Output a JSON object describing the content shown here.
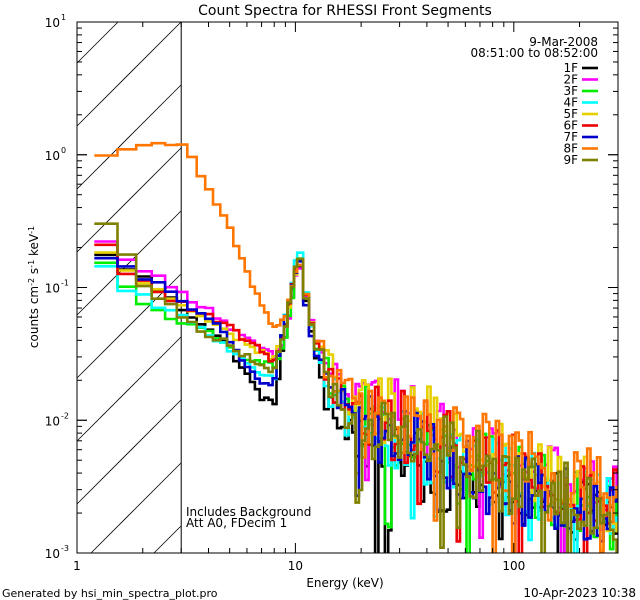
{
  "chart_data": {
    "type": "line",
    "title": "Count Spectra for RHESSI Front Segments",
    "xlabel": "Energy (keV)",
    "ylabel_parts": [
      "counts cm",
      "-2",
      " s",
      "-1",
      " keV",
      "-1"
    ],
    "x_scale": "log",
    "y_scale": "log",
    "xlim": [
      1,
      300
    ],
    "ylim": [
      0.001,
      10
    ],
    "x_ticks": [
      {
        "value": 1,
        "label": "1"
      },
      {
        "value": 10,
        "label": "10"
      },
      {
        "value": 100,
        "label": "100"
      }
    ],
    "y_ticks": [
      {
        "value": 0.001,
        "label": "10",
        "exp": "-3"
      },
      {
        "value": 0.01,
        "label": "10",
        "exp": "-2"
      },
      {
        "value": 0.1,
        "label": "10",
        "exp": "-1"
      },
      {
        "value": 1,
        "label": "10",
        "exp": "0"
      },
      {
        "value": 10,
        "label": "10",
        "exp": "1"
      }
    ],
    "date": "9-Mar-2008",
    "time_range": "08:51:00 to 08:52:00",
    "annotations": [
      "Includes Background",
      "Att A0, FDecim 1"
    ],
    "hatched_region_keV": [
      1,
      3
    ],
    "series": [
      {
        "name": "1F",
        "color": "#000000",
        "anchors": [
          [
            1.2,
            0.19
          ],
          [
            1.5,
            0.16
          ],
          [
            2,
            0.12
          ],
          [
            2.5,
            0.09
          ],
          [
            3,
            0.07
          ],
          [
            4,
            0.05
          ],
          [
            5,
            0.035
          ],
          [
            6,
            0.022
          ],
          [
            7,
            0.015
          ],
          [
            8,
            0.013
          ],
          [
            9,
            0.05
          ],
          [
            10,
            0.13
          ],
          [
            10.5,
            0.15
          ],
          [
            11,
            0.09
          ],
          [
            12,
            0.04
          ],
          [
            14,
            0.015
          ],
          [
            17,
            0.008
          ],
          [
            20,
            0.007
          ],
          [
            25,
            0.006
          ],
          [
            30,
            0.005
          ],
          [
            40,
            0.004
          ],
          [
            60,
            0.0035
          ],
          [
            80,
            0.003
          ],
          [
            100,
            0.0028
          ],
          [
            150,
            0.0023
          ],
          [
            200,
            0.0022
          ],
          [
            280,
            0.002
          ]
        ]
      },
      {
        "name": "2F",
        "color": "#ff00ff",
        "anchors": [
          [
            1.2,
            0.24
          ],
          [
            1.5,
            0.2
          ],
          [
            2,
            0.14
          ],
          [
            2.5,
            0.11
          ],
          [
            3,
            0.09
          ],
          [
            4,
            0.07
          ],
          [
            5,
            0.05
          ],
          [
            6,
            0.04
          ],
          [
            7,
            0.035
          ],
          [
            8,
            0.03
          ],
          [
            9,
            0.04
          ],
          [
            10,
            0.12
          ],
          [
            10.5,
            0.14
          ],
          [
            11,
            0.1
          ],
          [
            12,
            0.05
          ],
          [
            14,
            0.025
          ],
          [
            17,
            0.015
          ],
          [
            20,
            0.013
          ],
          [
            25,
            0.012
          ],
          [
            30,
            0.011
          ],
          [
            40,
            0.009
          ],
          [
            60,
            0.006
          ],
          [
            80,
            0.005
          ],
          [
            100,
            0.004
          ],
          [
            150,
            0.0035
          ],
          [
            200,
            0.003
          ],
          [
            280,
            0.0025
          ]
        ]
      },
      {
        "name": "3F",
        "color": "#00ee00",
        "anchors": [
          [
            1.2,
            0.2
          ],
          [
            1.5,
            0.12
          ],
          [
            2,
            0.075
          ],
          [
            2.5,
            0.065
          ],
          [
            3,
            0.055
          ],
          [
            4,
            0.045
          ],
          [
            5,
            0.035
          ],
          [
            6,
            0.03
          ],
          [
            7,
            0.028
          ],
          [
            8,
            0.025
          ],
          [
            9,
            0.04
          ],
          [
            10,
            0.12
          ],
          [
            10.5,
            0.16
          ],
          [
            11,
            0.1
          ],
          [
            12,
            0.045
          ],
          [
            14,
            0.02
          ],
          [
            17,
            0.012
          ],
          [
            20,
            0.01
          ],
          [
            25,
            0.009
          ],
          [
            30,
            0.008
          ],
          [
            40,
            0.006
          ],
          [
            60,
            0.005
          ],
          [
            80,
            0.004
          ],
          [
            100,
            0.0035
          ],
          [
            150,
            0.003
          ],
          [
            200,
            0.0025
          ],
          [
            280,
            0.002
          ]
        ]
      },
      {
        "name": "4F",
        "color": "#00ffff",
        "anchors": [
          [
            1.2,
            0.22
          ],
          [
            1.5,
            0.1
          ],
          [
            2,
            0.085
          ],
          [
            2.5,
            0.07
          ],
          [
            3,
            0.06
          ],
          [
            4,
            0.045
          ],
          [
            5,
            0.035
          ],
          [
            6,
            0.028
          ],
          [
            7,
            0.022
          ],
          [
            8,
            0.02
          ],
          [
            9,
            0.06
          ],
          [
            10,
            0.15
          ],
          [
            10.5,
            0.19
          ],
          [
            11,
            0.11
          ],
          [
            12,
            0.045
          ],
          [
            14,
            0.018
          ],
          [
            17,
            0.011
          ],
          [
            20,
            0.009
          ],
          [
            25,
            0.008
          ],
          [
            30,
            0.007
          ],
          [
            40,
            0.006
          ],
          [
            60,
            0.005
          ],
          [
            80,
            0.004
          ],
          [
            100,
            0.0035
          ],
          [
            150,
            0.003
          ],
          [
            200,
            0.0025
          ],
          [
            280,
            0.002
          ]
        ]
      },
      {
        "name": "5F",
        "color": "#e6d000",
        "anchors": [
          [
            1.2,
            0.2
          ],
          [
            1.5,
            0.16
          ],
          [
            2,
            0.11
          ],
          [
            2.5,
            0.09
          ],
          [
            3,
            0.075
          ],
          [
            4,
            0.055
          ],
          [
            5,
            0.045
          ],
          [
            6,
            0.038
          ],
          [
            7,
            0.032
          ],
          [
            8,
            0.03
          ],
          [
            9,
            0.05
          ],
          [
            10,
            0.13
          ],
          [
            10.5,
            0.16
          ],
          [
            11,
            0.1
          ],
          [
            12,
            0.05
          ],
          [
            14,
            0.025
          ],
          [
            17,
            0.016
          ],
          [
            20,
            0.013
          ],
          [
            25,
            0.012
          ],
          [
            30,
            0.011
          ],
          [
            40,
            0.01
          ],
          [
            60,
            0.007
          ],
          [
            80,
            0.0055
          ],
          [
            100,
            0.0045
          ],
          [
            150,
            0.0035
          ],
          [
            200,
            0.003
          ],
          [
            280,
            0.0025
          ]
        ]
      },
      {
        "name": "6F",
        "color": "#ee0000",
        "anchors": [
          [
            1.2,
            0.3
          ],
          [
            1.5,
            0.15
          ],
          [
            2,
            0.11
          ],
          [
            2.5,
            0.09
          ],
          [
            3,
            0.075
          ],
          [
            4,
            0.06
          ],
          [
            5,
            0.05
          ],
          [
            6,
            0.04
          ],
          [
            7,
            0.033
          ],
          [
            8,
            0.028
          ],
          [
            9,
            0.05
          ],
          [
            10,
            0.14
          ],
          [
            10.5,
            0.17
          ],
          [
            11,
            0.1
          ],
          [
            12,
            0.05
          ],
          [
            14,
            0.022
          ],
          [
            17,
            0.014
          ],
          [
            20,
            0.012
          ],
          [
            25,
            0.01
          ],
          [
            30,
            0.009
          ],
          [
            40,
            0.008
          ],
          [
            60,
            0.006
          ],
          [
            80,
            0.005
          ],
          [
            100,
            0.0045
          ],
          [
            150,
            0.0035
          ],
          [
            200,
            0.003
          ],
          [
            280,
            0.0025
          ]
        ]
      },
      {
        "name": "7F",
        "color": "#0000cc",
        "anchors": [
          [
            1.2,
            0.17
          ],
          [
            1.5,
            0.15
          ],
          [
            2,
            0.12
          ],
          [
            2.5,
            0.1
          ],
          [
            3,
            0.08
          ],
          [
            4,
            0.06
          ],
          [
            5,
            0.04
          ],
          [
            6,
            0.025
          ],
          [
            7,
            0.018
          ],
          [
            8,
            0.02
          ],
          [
            9,
            0.06
          ],
          [
            10,
            0.13
          ],
          [
            10.5,
            0.16
          ],
          [
            11,
            0.09
          ],
          [
            12,
            0.04
          ],
          [
            14,
            0.018
          ],
          [
            17,
            0.012
          ],
          [
            20,
            0.01
          ],
          [
            25,
            0.008
          ],
          [
            30,
            0.007
          ],
          [
            40,
            0.006
          ],
          [
            60,
            0.0045
          ],
          [
            80,
            0.0035
          ],
          [
            100,
            0.003
          ],
          [
            150,
            0.0025
          ],
          [
            200,
            0.0022
          ],
          [
            280,
            0.002
          ]
        ]
      },
      {
        "name": "8F",
        "color": "#ff7700",
        "anchors": [
          [
            1.2,
            0.85
          ],
          [
            1.5,
            1.0
          ],
          [
            2,
            1.15
          ],
          [
            2.5,
            1.25
          ],
          [
            3,
            1.15
          ],
          [
            3.5,
            0.85
          ],
          [
            4,
            0.55
          ],
          [
            5,
            0.28
          ],
          [
            6,
            0.13
          ],
          [
            7,
            0.075
          ],
          [
            8,
            0.05
          ],
          [
            9,
            0.06
          ],
          [
            10,
            0.13
          ],
          [
            10.5,
            0.16
          ],
          [
            11,
            0.1
          ],
          [
            12,
            0.05
          ],
          [
            14,
            0.025
          ],
          [
            17,
            0.016
          ],
          [
            20,
            0.013
          ],
          [
            25,
            0.012
          ],
          [
            30,
            0.01
          ],
          [
            40,
            0.009
          ],
          [
            60,
            0.007
          ],
          [
            80,
            0.006
          ],
          [
            100,
            0.005
          ],
          [
            150,
            0.004
          ],
          [
            200,
            0.0035
          ],
          [
            280,
            0.003
          ]
        ]
      },
      {
        "name": "9F",
        "color": "#808000",
        "anchors": [
          [
            1.2,
            0.45
          ],
          [
            1.5,
            0.25
          ],
          [
            2,
            0.11
          ],
          [
            2.5,
            0.08
          ],
          [
            3,
            0.06
          ],
          [
            4,
            0.045
          ],
          [
            5,
            0.038
          ],
          [
            6,
            0.03
          ],
          [
            7,
            0.025
          ],
          [
            8,
            0.024
          ],
          [
            9,
            0.05
          ],
          [
            10,
            0.14
          ],
          [
            10.5,
            0.17
          ],
          [
            11,
            0.1
          ],
          [
            12,
            0.045
          ],
          [
            14,
            0.02
          ],
          [
            17,
            0.012
          ],
          [
            20,
            0.01
          ],
          [
            25,
            0.009
          ],
          [
            30,
            0.008
          ],
          [
            40,
            0.007
          ],
          [
            60,
            0.005
          ],
          [
            80,
            0.004
          ],
          [
            100,
            0.0035
          ],
          [
            150,
            0.003
          ],
          [
            200,
            0.0025
          ],
          [
            280,
            0.002
          ]
        ]
      }
    ]
  },
  "footer": {
    "generated_by": "Generated by hsi_min_spectra_plot.pro",
    "render_date": "10-Apr-2023 10:38"
  }
}
